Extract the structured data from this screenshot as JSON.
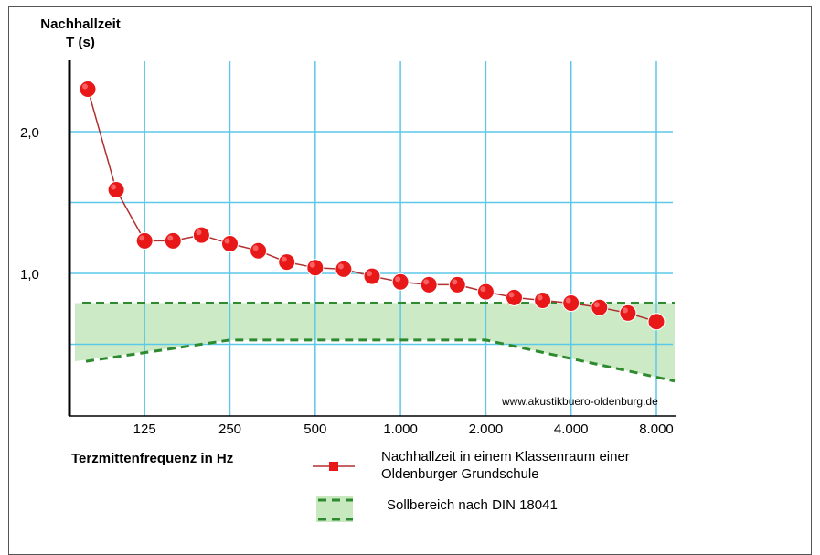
{
  "chart_data": {
    "type": "line",
    "y_title_line1": "Nachhallzeit",
    "y_title_line2": "T (s)",
    "xlabel": "Terzmittenfrequenz in Hz",
    "yticks": [
      "2,0",
      "1,0"
    ],
    "ytick_values": [
      2.0,
      1.0
    ],
    "ylim": [
      0,
      2.5
    ],
    "xtick_labels": [
      "125",
      "250",
      "500",
      "1.000",
      "2.000",
      "4.000",
      "8.000"
    ],
    "xtick_positions": [
      3,
      6,
      9,
      12,
      15,
      18,
      21
    ],
    "x_index_range": [
      1,
      21
    ],
    "grid": true,
    "watermark": "www.akustikbuero-oldenburg.de",
    "series": [
      {
        "name": "Nachhallzeit in einem Klassenraum einer Oldenburger Grundschule",
        "color": "#e81818",
        "x": [
          1,
          2,
          3,
          4,
          5,
          6,
          7,
          8,
          9,
          10,
          11,
          12,
          13,
          14,
          15,
          16,
          17,
          18,
          19,
          20,
          21,
          22
        ],
        "values": [
          2.3,
          1.59,
          1.23,
          1.23,
          1.27,
          1.21,
          1.16,
          1.08,
          1.04,
          1.03,
          0.98,
          0.94,
          0.92,
          0.92,
          0.87,
          0.83,
          0.81,
          0.79,
          0.76,
          0.72,
          0.66,
          0.66
        ]
      }
    ],
    "target_range": {
      "name": "Sollbereich nach DIN 18041",
      "color": "#c8e8c0",
      "upper": [
        {
          "x": 1,
          "y": 0.79
        },
        {
          "x": 22,
          "y": 0.79
        }
      ],
      "lower": [
        {
          "x": 1,
          "y": 0.38
        },
        {
          "x": 6,
          "y": 0.53
        },
        {
          "x": 15,
          "y": 0.53
        },
        {
          "x": 22,
          "y": 0.24
        }
      ]
    }
  },
  "legend": {
    "series_line1": "Nachhallzeit in einem Klassenraum einer",
    "series_line2": "Oldenburger Grundschule",
    "range_label": "Sollbereich nach DIN 18041"
  }
}
